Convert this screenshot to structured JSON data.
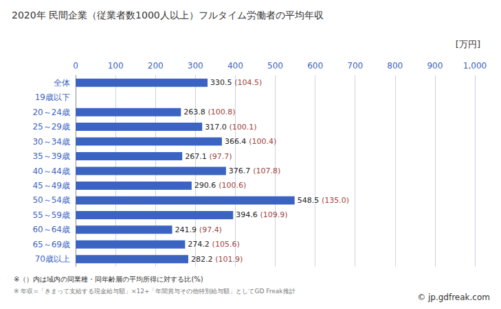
{
  "chart_data": {
    "type": "bar",
    "orientation": "horizontal",
    "title": "2020年 民間企業（従業者数1000人以上）フルタイム労働者の平均年収",
    "x_label": "[万円]",
    "categories": [
      "全体",
      "19歳以下",
      "20～24歳",
      "25～29歳",
      "30～34歳",
      "35～39歳",
      "40～44歳",
      "45～49歳",
      "50～54歳",
      "55～59歳",
      "60～64歳",
      "65～69歳",
      "70歳以上"
    ],
    "values": [
      330.5,
      null,
      263.8,
      317.0,
      366.4,
      267.1,
      376.7,
      290.6,
      548.5,
      394.6,
      241.9,
      274.2,
      282.2
    ],
    "value_labels": [
      "330.5 (104.5)",
      null,
      "263.8 (100.8)",
      "317.0 (100.1)",
      "366.4 (100.4)",
      "267.1 (97.7)",
      "376.7 (107.8)",
      "290.6 (100.6)",
      "548.5 (135.0)",
      "394.6 (109.9)",
      "241.9 (97.4)",
      "274.2 (105.6)",
      "282.2 (101.9)"
    ],
    "data_labels": true,
    "color": "#3a63c2",
    "xlim": [
      0,
      1000
    ],
    "xticks": [
      0,
      100,
      200,
      300,
      400,
      500,
      600,
      700,
      800,
      900,
      1000
    ],
    "grid": true,
    "annotations": [
      "※（）内は域内の同業種・同年齢層の平均所得に対する比(%)",
      "※ 年収=「きまって支給する現金給与額」×12+「年間賞与その他特別給与額」としてGD Freak推計",
      "© jp.gdfreak.com"
    ]
  }
}
